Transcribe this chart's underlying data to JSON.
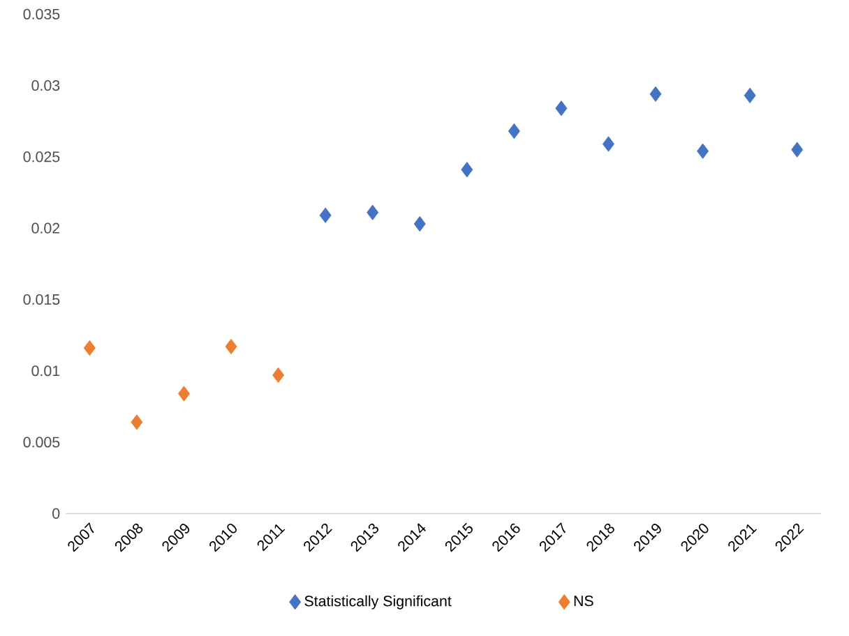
{
  "chart_data": {
    "type": "scatter",
    "categories": [
      "2007",
      "2008",
      "2009",
      "2010",
      "2011",
      "2012",
      "2013",
      "2014",
      "2015",
      "2016",
      "2017",
      "2018",
      "2019",
      "2020",
      "2021",
      "2022"
    ],
    "series": [
      {
        "name": "Statistically Significant",
        "color": "#4472c4",
        "values": [
          null,
          null,
          null,
          null,
          null,
          0.0209,
          0.0211,
          0.0203,
          0.0241,
          0.0268,
          0.0284,
          0.0259,
          0.0294,
          0.0254,
          0.0293,
          0.0255
        ]
      },
      {
        "name": "NS",
        "color": "#ed7d31",
        "values": [
          0.0116,
          0.0064,
          0.0084,
          0.0117,
          0.0097,
          null,
          null,
          null,
          null,
          null,
          null,
          null,
          null,
          null,
          null,
          null
        ]
      }
    ],
    "ylim": [
      0,
      0.035
    ],
    "yticks": [
      {
        "value": 0,
        "label": "0"
      },
      {
        "value": 0.005,
        "label": "0.005"
      },
      {
        "value": 0.01,
        "label": "0.01"
      },
      {
        "value": 0.015,
        "label": "0.015"
      },
      {
        "value": 0.02,
        "label": "0.02"
      },
      {
        "value": 0.025,
        "label": "0.025"
      },
      {
        "value": 0.03,
        "label": "0.03"
      },
      {
        "value": 0.035,
        "label": "0.035"
      }
    ],
    "marker": "diamond",
    "legend": "bottom",
    "grid": false
  }
}
